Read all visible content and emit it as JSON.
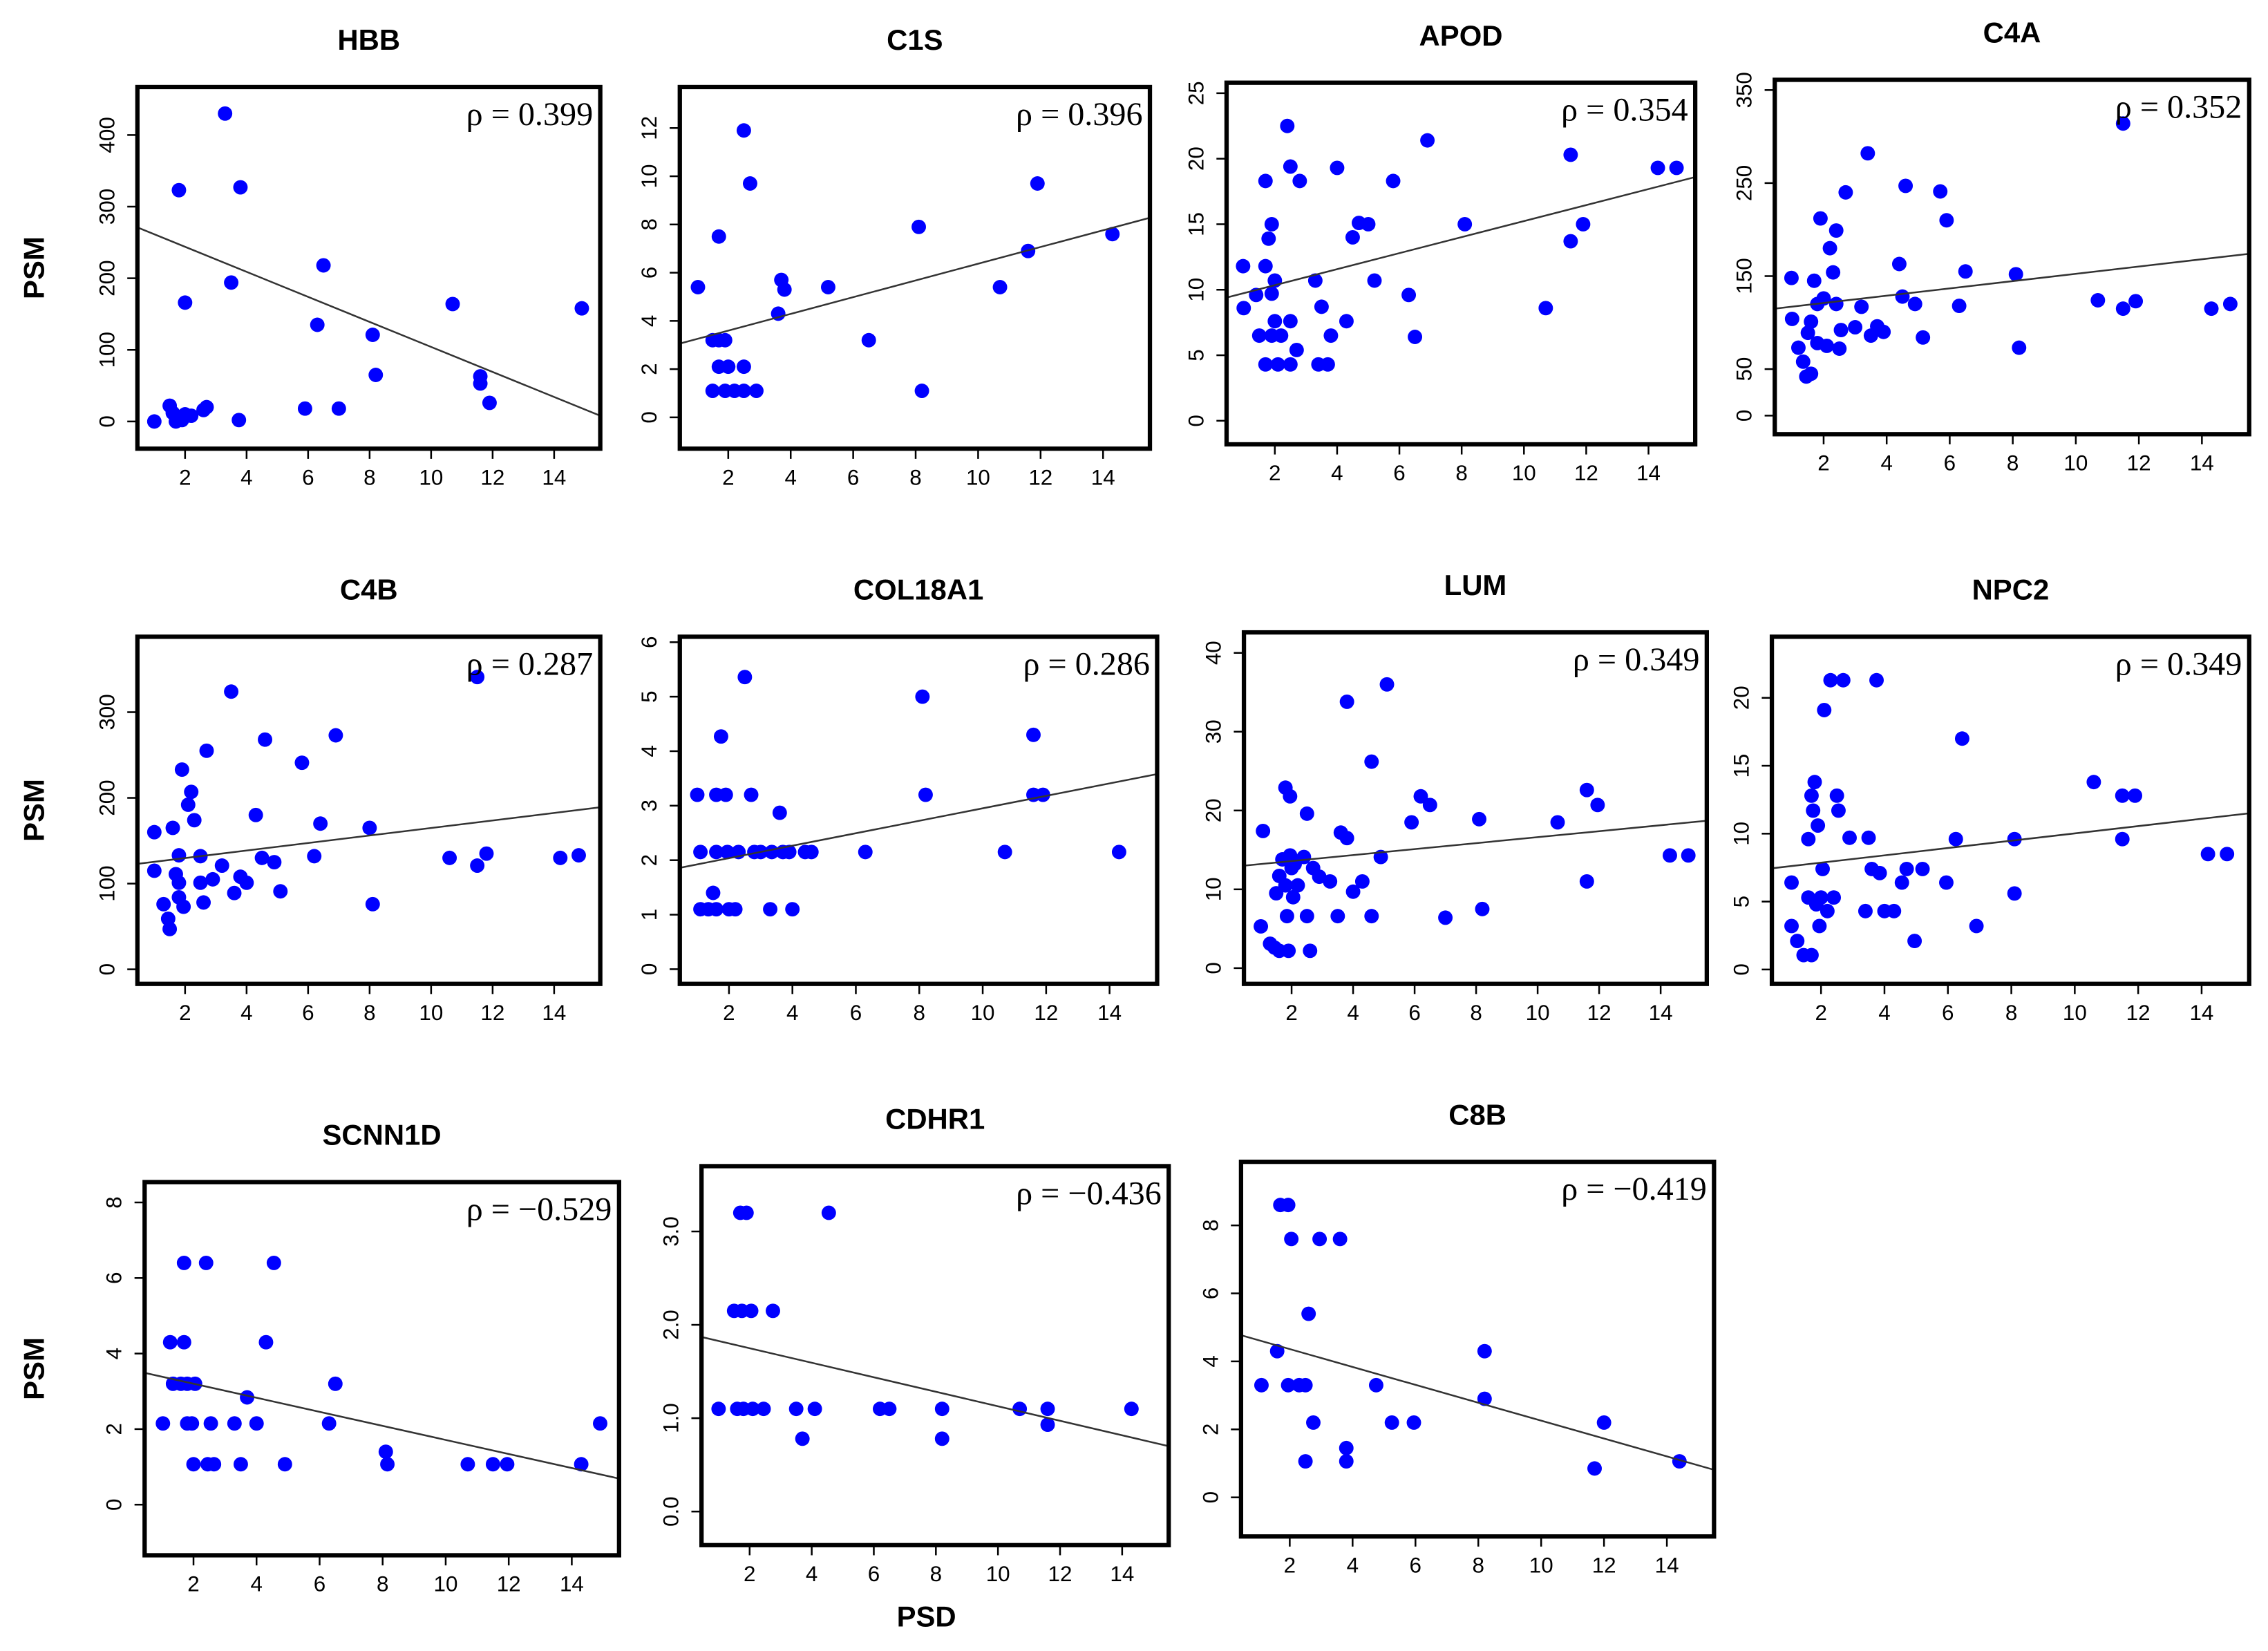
{
  "chart_data": [
    {
      "type": "scatter",
      "title": "HBB",
      "annotation": "ρ = 0.399",
      "ylabel": "PSM",
      "color": "#0000ff",
      "x": [
        1.0,
        1.5,
        1.6,
        1.7,
        1.8,
        2.0,
        2.0,
        1.9,
        2.2,
        2.6,
        2.7,
        3.3,
        3.5,
        3.8,
        3.75,
        5.9,
        6.3,
        6.5,
        7.0,
        8.1,
        8.2,
        10.7,
        11.6,
        11.6,
        11.9,
        14.9
      ],
      "y": [
        0,
        22,
        12,
        0,
        323,
        166,
        10,
        2,
        8,
        16,
        20,
        430,
        194,
        327,
        2,
        18,
        135,
        218,
        18,
        121,
        65,
        164,
        63,
        53,
        26,
        158
      ],
      "fit_line": {
        "x": [
          0.45,
          15.5
        ],
        "y": [
          271,
          8
        ]
      },
      "xlim": [
        0.45,
        15.5
      ],
      "ylim": [
        -38,
        467
      ],
      "xticks": [
        2,
        4,
        6,
        8,
        10,
        12,
        14
      ],
      "yticks": [
        0,
        100,
        200,
        300,
        400
      ]
    },
    {
      "type": "scatter",
      "title": "C1S",
      "annotation": "ρ = 0.396",
      "color": "#0000ff",
      "x": [
        1.03,
        1.5,
        1.7,
        1.9,
        1.7,
        1.5,
        1.9,
        2.2,
        2.5,
        2.9,
        1.7,
        2.0,
        2.5,
        2.5,
        2.7,
        3.6,
        3.7,
        3.8,
        5.2,
        6.5,
        8.1,
        8.2,
        10.7,
        11.6,
        11.9,
        14.3
      ],
      "y": [
        5.4,
        3.2,
        3.2,
        3.2,
        7.5,
        1.1,
        1.1,
        1.1,
        1.1,
        1.1,
        2.1,
        2.1,
        2.1,
        11.9,
        9.7,
        4.3,
        5.7,
        5.3,
        5.4,
        3.2,
        7.9,
        1.1,
        5.4,
        6.9,
        9.7,
        7.6
      ],
      "fit_line": {
        "x": [
          0.45,
          15.5
        ],
        "y": [
          3.06,
          8.28
        ]
      },
      "xlim": [
        0.45,
        15.5
      ],
      "ylim": [
        -1.3,
        13.7
      ],
      "xticks": [
        2,
        4,
        6,
        8,
        10,
        12,
        14
      ],
      "yticks": [
        0,
        2,
        4,
        6,
        8,
        10,
        12
      ]
    },
    {
      "type": "scatter",
      "title": "APOD",
      "annotation": "ρ = 0.354",
      "color": "#0000ff",
      "x": [
        0.98,
        1.0,
        1.4,
        1.5,
        1.7,
        1.7,
        1.7,
        1.8,
        1.9,
        1.9,
        1.9,
        2.0,
        2.0,
        2.1,
        2.2,
        2.4,
        2.5,
        2.5,
        2.5,
        2.7,
        2.8,
        3.3,
        3.4,
        3.7,
        3.5,
        3.8,
        4.0,
        4.3,
        4.5,
        4.7,
        5.0,
        5.2,
        5.8,
        6.3,
        6.5,
        6.9,
        8.1,
        10.7,
        11.5,
        11.5,
        11.9,
        14.3,
        14.9
      ],
      "y": [
        11.8,
        8.6,
        9.6,
        6.5,
        4.3,
        11.8,
        18.3,
        13.9,
        15.0,
        6.5,
        9.7,
        10.7,
        7.6,
        4.3,
        6.5,
        22.5,
        7.6,
        19.4,
        4.3,
        5.4,
        18.3,
        10.7,
        4.3,
        4.3,
        8.7,
        6.5,
        19.3,
        7.6,
        14.0,
        15.1,
        15.0,
        10.7,
        18.3,
        9.6,
        6.4,
        21.4,
        15.0,
        8.6,
        20.3,
        13.7,
        15.0,
        19.3,
        19.3
      ],
      "fit_line": {
        "x": [
          0.45,
          15.5
        ],
        "y": [
          9.4,
          18.6
        ]
      },
      "xlim": [
        0.45,
        15.5
      ],
      "ylim": [
        -1.8,
        25.8
      ],
      "xticks": [
        2,
        4,
        6,
        8,
        10,
        12,
        14
      ],
      "yticks": [
        0,
        5,
        10,
        15,
        20,
        25
      ]
    },
    {
      "type": "scatter",
      "title": "C4A",
      "annotation": "ρ = 0.352",
      "color": "#0000ff",
      "x": [
        0.98,
        1.0,
        1.2,
        1.35,
        1.45,
        1.6,
        1.5,
        1.6,
        1.7,
        1.8,
        1.8,
        1.9,
        2.0,
        2.1,
        2.2,
        2.3,
        2.4,
        2.4,
        2.5,
        2.55,
        2.7,
        3.0,
        3.2,
        3.4,
        3.5,
        3.7,
        3.9,
        4.4,
        4.5,
        4.6,
        4.9,
        5.15,
        5.7,
        5.9,
        6.3,
        6.5,
        8.1,
        8.2,
        10.7,
        11.5,
        11.5,
        11.9,
        14.3,
        14.9
      ],
      "y": [
        148,
        104,
        73,
        58,
        42,
        45,
        89,
        101,
        145,
        120,
        78,
        212,
        126,
        75,
        180,
        154,
        199,
        120,
        72,
        92,
        240,
        95,
        117,
        282,
        86,
        96,
        90,
        163,
        128,
        247,
        120,
        84,
        241,
        210,
        118,
        155,
        152,
        73,
        124,
        314,
        115,
        123,
        115,
        120
      ],
      "fit_line": {
        "x": [
          0.45,
          15.5
        ],
        "y": [
          115,
          174
        ]
      },
      "xlim": [
        0.45,
        15.5
      ],
      "ylim": [
        -20,
        361
      ],
      "xticks": [
        2,
        4,
        6,
        8,
        10,
        12,
        14
      ],
      "yticks": [
        0,
        50,
        150,
        250,
        350
      ]
    },
    {
      "type": "scatter",
      "title": "C4B",
      "annotation": "ρ = 0.287",
      "ylabel": "PSM",
      "color": "#0000ff",
      "x": [
        1.0,
        1.0,
        1.3,
        1.45,
        1.5,
        1.6,
        1.7,
        1.8,
        1.8,
        1.8,
        1.9,
        1.95,
        2.1,
        2.2,
        2.3,
        2.5,
        2.5,
        2.6,
        2.7,
        2.9,
        3.2,
        3.5,
        3.6,
        3.8,
        4.0,
        4.3,
        4.5,
        4.6,
        4.9,
        5.1,
        5.8,
        6.2,
        6.4,
        6.9,
        8.0,
        8.1,
        10.6,
        11.5,
        11.5,
        11.8,
        14.2,
        14.8
      ],
      "y": [
        115,
        160,
        76,
        59,
        47,
        165,
        111,
        101,
        133,
        84,
        233,
        73,
        192,
        207,
        174,
        132,
        101,
        78,
        255,
        105,
        121,
        324,
        89,
        108,
        101,
        180,
        130,
        268,
        125,
        91,
        241,
        132,
        170,
        273,
        165,
        76,
        130,
        341,
        121,
        135,
        130,
        133
      ],
      "fit_line": {
        "x": [
          0.45,
          15.5
        ],
        "y": [
          123,
          189
        ]
      },
      "xlim": [
        0.45,
        15.5
      ],
      "ylim": [
        -17,
        388
      ],
      "xticks": [
        2,
        4,
        6,
        8,
        10,
        12,
        14
      ],
      "yticks": [
        0,
        100,
        200,
        300
      ]
    },
    {
      "type": "scatter",
      "title": "COL18A1",
      "annotation": "ρ = 0.286",
      "color": "#0000ff",
      "x": [
        1.0,
        1.1,
        1.1,
        1.35,
        1.5,
        1.6,
        1.6,
        1.6,
        1.75,
        1.9,
        1.95,
        2.0,
        2.2,
        2.3,
        2.5,
        2.7,
        2.8,
        3.0,
        3.3,
        3.35,
        3.6,
        3.7,
        3.9,
        4.0,
        4.4,
        4.6,
        6.3,
        8.1,
        8.2,
        10.7,
        11.6,
        11.6,
        11.9,
        14.3
      ],
      "y": [
        3.2,
        2.15,
        1.1,
        1.1,
        1.4,
        2.15,
        1.1,
        3.2,
        4.27,
        3.2,
        2.15,
        1.1,
        1.1,
        2.15,
        5.36,
        3.2,
        2.15,
        2.15,
        1.1,
        2.15,
        2.87,
        2.15,
        2.15,
        1.1,
        2.15,
        2.15,
        2.15,
        5.0,
        3.2,
        2.15,
        4.3,
        3.2,
        3.2,
        2.15
      ],
      "fit_line": {
        "x": [
          0.45,
          15.5
        ],
        "y": [
          1.86,
          3.58
        ]
      },
      "xlim": [
        0.45,
        15.5
      ],
      "ylim": [
        -0.27,
        6.1
      ],
      "xticks": [
        2,
        4,
        6,
        8,
        10,
        12,
        14
      ],
      "yticks": [
        0,
        1,
        2,
        3,
        4,
        5,
        6
      ]
    },
    {
      "type": "scatter",
      "title": "LUM",
      "annotation": "ρ = 0.349",
      "color": "#0000ff",
      "x": [
        1.07,
        1.0,
        1.3,
        1.45,
        1.5,
        1.6,
        1.6,
        1.7,
        1.8,
        1.8,
        1.85,
        1.9,
        1.95,
        1.95,
        2.0,
        2.05,
        2.1,
        2.2,
        2.4,
        2.5,
        2.5,
        2.6,
        2.7,
        2.9,
        3.25,
        3.5,
        3.6,
        3.8,
        3.8,
        4.0,
        4.3,
        4.6,
        4.6,
        4.9,
        5.1,
        5.9,
        6.2,
        6.5,
        7.0,
        8.1,
        8.2,
        10.65,
        11.6,
        11.6,
        11.95,
        14.3,
        14.9
      ],
      "y": [
        17.4,
        5.3,
        3.1,
        2.6,
        9.5,
        11.7,
        2.2,
        13.8,
        22.9,
        10.5,
        6.6,
        2.2,
        21.8,
        14.3,
        12.7,
        9.0,
        13.2,
        10.5,
        14.1,
        6.6,
        19.6,
        2.2,
        12.7,
        11.6,
        11.0,
        6.6,
        17.2,
        33.8,
        16.5,
        9.7,
        11.0,
        26.2,
        6.6,
        14.1,
        36,
        18.5,
        21.8,
        20.7,
        6.4,
        18.9,
        7.5,
        18.5,
        22.6,
        11.0,
        20.7,
        14.3,
        14.3
      ],
      "fit_line": {
        "x": [
          0.45,
          15.5
        ],
        "y": [
          13.0,
          18.7
        ]
      },
      "xlim": [
        0.45,
        15.5
      ],
      "ylim": [
        -2,
        42.6
      ],
      "xticks": [
        2,
        4,
        6,
        8,
        10,
        12,
        14
      ],
      "yticks": [
        0,
        10,
        20,
        30,
        40
      ]
    },
    {
      "type": "scatter",
      "title": "NPC2",
      "annotation": "ρ = 0.349",
      "color": "#0000ff",
      "x": [
        1.07,
        1.07,
        1.25,
        1.45,
        1.6,
        1.6,
        1.7,
        1.7,
        1.75,
        1.8,
        1.85,
        1.9,
        1.95,
        2.0,
        2.05,
        2.1,
        2.2,
        2.3,
        2.4,
        2.5,
        2.55,
        2.7,
        2.9,
        3.4,
        3.5,
        3.6,
        3.75,
        3.85,
        4.0,
        4.3,
        4.55,
        4.7,
        4.95,
        5.2,
        5.95,
        6.25,
        6.45,
        6.9,
        8.1,
        8.1,
        10.6,
        11.5,
        11.5,
        11.9,
        14.2,
        14.8
      ],
      "y": [
        6.4,
        3.2,
        2.1,
        1.06,
        9.6,
        5.3,
        12.8,
        1.06,
        11.7,
        13.8,
        4.8,
        10.6,
        3.2,
        5.3,
        7.4,
        19.1,
        4.3,
        21.3,
        5.3,
        12.8,
        11.7,
        21.3,
        9.7,
        4.3,
        9.7,
        7.4,
        21.3,
        7.1,
        4.3,
        4.3,
        6.4,
        7.4,
        2.1,
        7.4,
        6.4,
        9.6,
        17.0,
        3.2,
        9.6,
        5.6,
        13.8,
        9.6,
        12.8,
        12.8,
        8.5,
        8.5
      ],
      "fit_line": {
        "x": [
          0.45,
          15.5
        ],
        "y": [
          7.45,
          11.5
        ]
      },
      "xlim": [
        0.45,
        15.5
      ],
      "ylim": [
        -1.06,
        24.5
      ],
      "xticks": [
        2,
        4,
        6,
        8,
        10,
        12,
        14
      ],
      "yticks": [
        0,
        5,
        10,
        15,
        20
      ]
    },
    {
      "type": "scatter",
      "title": "SCNN1D",
      "annotation": "ρ = −0.529",
      "ylabel": "PSM",
      "color": "#0000ff",
      "x": [
        1.03,
        1.26,
        1.35,
        1.6,
        1.7,
        1.7,
        1.8,
        1.8,
        1.95,
        2.05,
        2.0,
        2.4,
        2.45,
        2.55,
        2.65,
        3.3,
        3.5,
        3.7,
        4.0,
        4.3,
        4.55,
        4.9,
        6.3,
        6.5,
        8.1,
        8.15,
        10.7,
        11.5,
        11.95,
        14.3,
        14.9
      ],
      "y": [
        2.15,
        4.3,
        3.2,
        3.2,
        4.3,
        6.4,
        2.15,
        3.2,
        2.15,
        3.2,
        1.07,
        6.4,
        1.07,
        2.15,
        1.07,
        2.15,
        1.07,
        2.84,
        2.15,
        4.3,
        6.4,
        1.07,
        2.15,
        3.2,
        1.4,
        1.07,
        1.07,
        1.07,
        1.07,
        1.07,
        2.15
      ],
      "fit_line": {
        "x": [
          0.45,
          15.5
        ],
        "y": [
          3.49,
          0.69
        ]
      },
      "xlim": [
        0.45,
        15.5
      ],
      "ylim": [
        -1.34,
        8.54
      ],
      "xticks": [
        2,
        4,
        6,
        8,
        10,
        12,
        14
      ],
      "yticks": [
        0,
        2,
        4,
        6,
        8
      ]
    },
    {
      "type": "scatter",
      "title": "CDHR1",
      "annotation": "ρ = −0.436",
      "xlabel": "PSD",
      "color": "#0000ff",
      "x": [
        1.0,
        1.5,
        1.6,
        1.7,
        1.75,
        1.8,
        1.9,
        2.05,
        2.1,
        2.45,
        2.75,
        3.5,
        3.7,
        4.1,
        4.55,
        6.2,
        6.5,
        8.2,
        8.2,
        10.7,
        11.6,
        11.6,
        14.3
      ],
      "y": [
        1.1,
        2.15,
        1.1,
        3.2,
        2.15,
        1.1,
        3.2,
        2.15,
        1.1,
        1.1,
        2.15,
        1.1,
        0.78,
        1.1,
        3.2,
        1.1,
        1.1,
        1.1,
        0.78,
        1.1,
        1.1,
        0.93,
        1.1
      ],
      "fit_line": {
        "x": [
          0.45,
          15.5
        ],
        "y": [
          1.87,
          0.7
        ]
      },
      "xlim": [
        0.45,
        15.5
      ],
      "ylim": [
        -0.36,
        3.7
      ],
      "xticks": [
        2,
        4,
        6,
        8,
        10,
        12,
        14
      ],
      "yticks": [
        {
          "value": 0,
          "label": "0.0"
        },
        {
          "value": 1,
          "label": "1.0"
        },
        {
          "value": 2,
          "label": "2.0"
        },
        {
          "value": 3,
          "label": "3.0"
        }
      ]
    },
    {
      "type": "scatter",
      "title": "C8B",
      "annotation": "ρ = −0.419",
      "color": "#0000ff",
      "x": [
        1.1,
        1.6,
        1.7,
        1.95,
        2.05,
        1.95,
        2.3,
        2.5,
        2.6,
        2.5,
        2.75,
        2.95,
        3.6,
        3.8,
        3.8,
        4.75,
        5.25,
        5.95,
        8.2,
        8.2,
        11.7,
        12.0,
        14.4
      ],
      "y": [
        3.3,
        4.3,
        8.6,
        8.6,
        7.6,
        3.3,
        3.3,
        3.3,
        5.4,
        1.06,
        2.2,
        7.6,
        7.6,
        1.45,
        1.06,
        3.3,
        2.2,
        2.2,
        4.3,
        2.9,
        0.85,
        2.2,
        1.06
      ],
      "fit_line": {
        "x": [
          0.45,
          15.5
        ],
        "y": [
          4.77,
          0.81
        ]
      },
      "xlim": [
        0.45,
        15.5
      ],
      "ylim": [
        -1.15,
        9.87
      ],
      "xticks": [
        2,
        4,
        6,
        8,
        10,
        12,
        14
      ],
      "yticks": [
        0,
        2,
        4,
        6,
        8
      ]
    }
  ]
}
